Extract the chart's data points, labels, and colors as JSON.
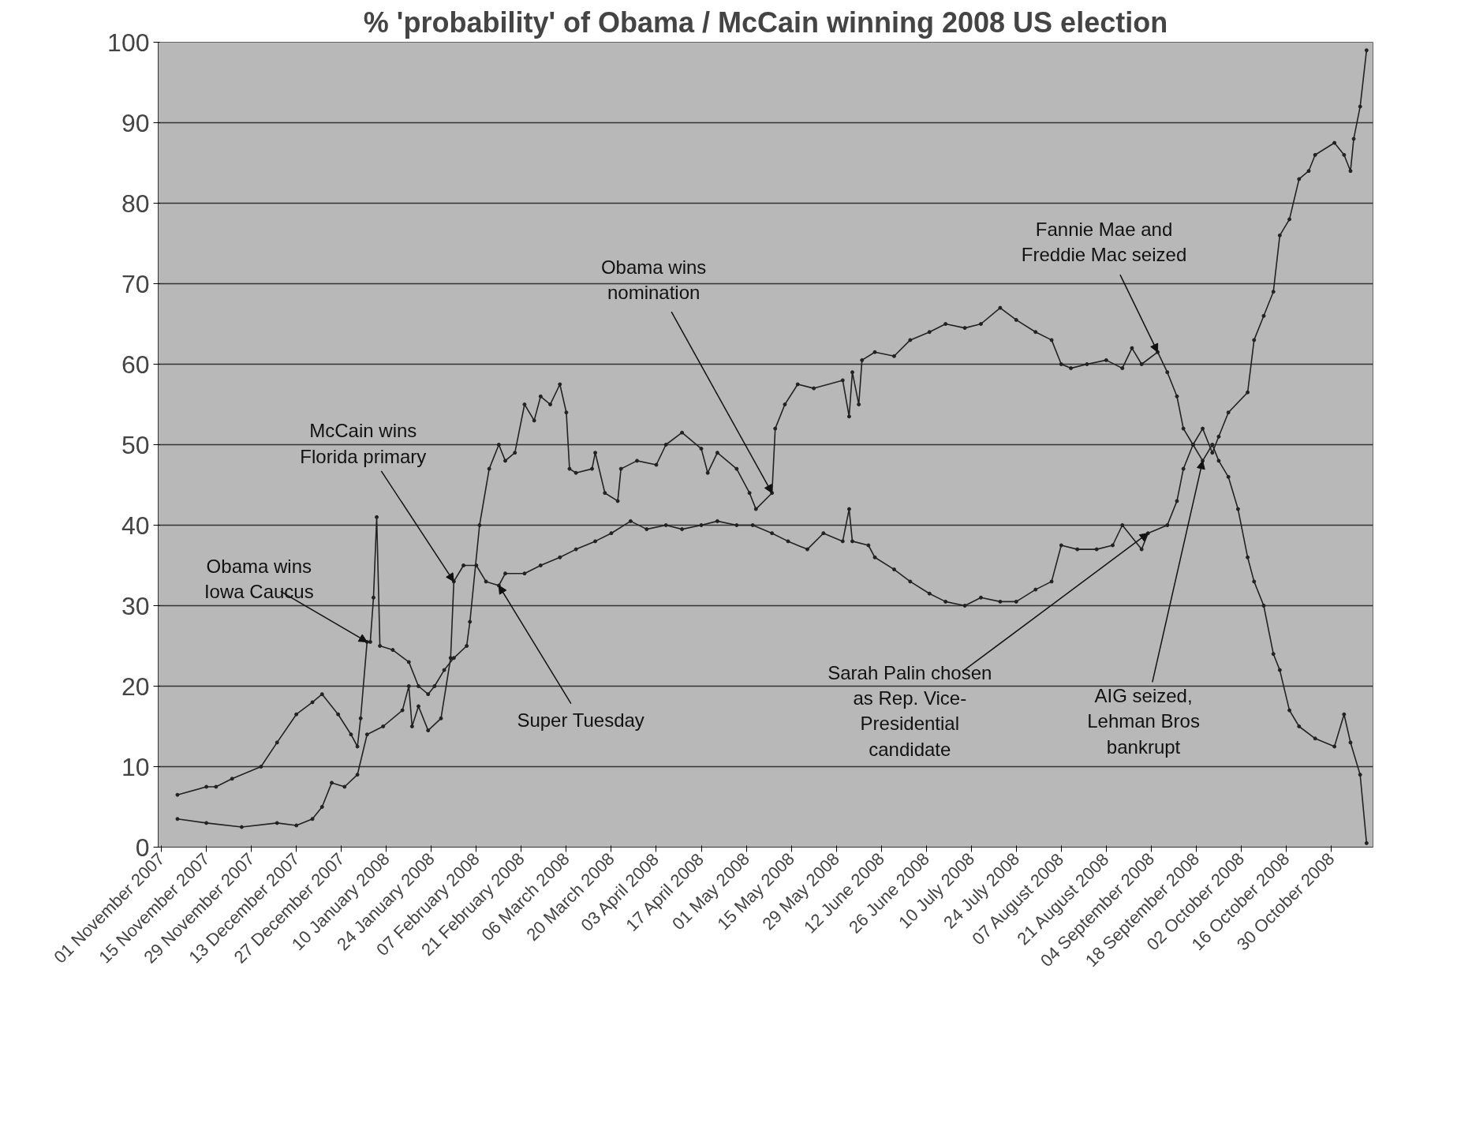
{
  "chart_data": {
    "type": "line",
    "title": "% 'probability' of Obama / McCain winning 2008 US election",
    "xlim": [
      "2007-10-31",
      "2008-11-12"
    ],
    "ylim": [
      0,
      100
    ],
    "yticks": [
      0,
      10,
      20,
      30,
      40,
      50,
      60,
      70,
      80,
      90,
      100
    ],
    "xticks": [
      {
        "value": "2007-11-01",
        "label": "01 November 2007"
      },
      {
        "value": "2007-11-15",
        "label": "15 November 2007"
      },
      {
        "value": "2007-11-29",
        "label": "29 November 2007"
      },
      {
        "value": "2007-12-13",
        "label": "13 December 2007"
      },
      {
        "value": "2007-12-27",
        "label": "27 December 2007"
      },
      {
        "value": "2008-01-10",
        "label": "10 January 2008"
      },
      {
        "value": "2008-01-24",
        "label": "24 January 2008"
      },
      {
        "value": "2008-02-07",
        "label": "07 February 2008"
      },
      {
        "value": "2008-02-21",
        "label": "21 February 2008"
      },
      {
        "value": "2008-03-06",
        "label": "06 March 2008"
      },
      {
        "value": "2008-03-20",
        "label": "20 March 2008"
      },
      {
        "value": "2008-04-03",
        "label": "03 April 2008"
      },
      {
        "value": "2008-04-17",
        "label": "17 April 2008"
      },
      {
        "value": "2008-05-01",
        "label": "01 May 2008"
      },
      {
        "value": "2008-05-15",
        "label": "15 May 2008"
      },
      {
        "value": "2008-05-29",
        "label": "29 May 2008"
      },
      {
        "value": "2008-06-12",
        "label": "12 June 2008"
      },
      {
        "value": "2008-06-26",
        "label": "26 June 2008"
      },
      {
        "value": "2008-07-10",
        "label": "10 July 2008"
      },
      {
        "value": "2008-07-24",
        "label": "24 July 2008"
      },
      {
        "value": "2008-08-07",
        "label": "07 August 2008"
      },
      {
        "value": "2008-08-21",
        "label": "21 August 2008"
      },
      {
        "value": "2008-09-04",
        "label": "04 September 2008"
      },
      {
        "value": "2008-09-18",
        "label": "18 September 2008"
      },
      {
        "value": "2008-10-02",
        "label": "02 October 2008"
      },
      {
        "value": "2008-10-16",
        "label": "16 October 2008"
      },
      {
        "value": "2008-10-30",
        "label": "30 October 2008"
      }
    ],
    "grid": "y",
    "marker": "circle",
    "line_style": "solid",
    "series": [
      {
        "color": "#222222",
        "x": [
          "2007-11-06",
          "2007-11-15",
          "2007-11-18",
          "2007-11-23",
          "2007-12-02",
          "2007-12-07",
          "2007-12-13",
          "2007-12-18",
          "2007-12-21",
          "2007-12-26",
          "2007-12-30",
          "2008-01-01",
          "2008-01-02",
          "2008-01-04",
          "2008-01-05",
          "2008-01-06",
          "2008-01-07",
          "2008-01-08",
          "2008-01-12",
          "2008-01-17",
          "2008-01-20",
          "2008-01-23",
          "2008-01-25",
          "2008-01-28",
          "2008-01-31",
          "2008-02-04",
          "2008-02-05",
          "2008-02-08",
          "2008-02-11",
          "2008-02-14",
          "2008-02-16",
          "2008-02-19",
          "2008-02-22",
          "2008-02-25",
          "2008-02-27",
          "2008-03-01",
          "2008-03-04",
          "2008-03-06",
          "2008-03-07",
          "2008-03-09",
          "2008-03-14",
          "2008-03-15",
          "2008-03-18",
          "2008-03-22",
          "2008-03-23",
          "2008-03-28",
          "2008-04-03",
          "2008-04-06",
          "2008-04-11",
          "2008-04-17",
          "2008-04-19",
          "2008-04-22",
          "2008-04-28",
          "2008-05-02",
          "2008-05-04",
          "2008-05-09",
          "2008-05-10",
          "2008-05-13",
          "2008-05-17",
          "2008-05-22",
          "2008-05-31",
          "2008-06-02",
          "2008-06-03",
          "2008-06-05",
          "2008-06-06",
          "2008-06-10",
          "2008-06-16",
          "2008-06-21",
          "2008-06-27",
          "2008-07-02",
          "2008-07-08",
          "2008-07-13",
          "2008-07-19",
          "2008-07-24",
          "2008-07-30",
          "2008-08-04",
          "2008-08-07",
          "2008-08-10",
          "2008-08-15",
          "2008-08-21",
          "2008-08-26",
          "2008-08-29",
          "2008-09-01",
          "2008-09-06",
          "2008-09-09",
          "2008-09-12",
          "2008-09-14",
          "2008-09-17",
          "2008-09-20",
          "2008-09-23",
          "2008-09-25",
          "2008-09-28",
          "2008-10-04",
          "2008-10-06",
          "2008-10-09",
          "2008-10-12",
          "2008-10-14",
          "2008-10-17",
          "2008-10-20",
          "2008-10-23",
          "2008-10-25",
          "2008-10-31",
          "2008-11-03",
          "2008-11-05",
          "2008-11-06",
          "2008-11-08",
          "2008-11-10"
        ],
        "values": [
          6.5,
          7.5,
          7.5,
          8.5,
          10,
          13,
          16.5,
          18,
          19,
          16.5,
          14,
          12.5,
          16,
          25.5,
          25.5,
          31,
          41,
          25,
          24.5,
          23,
          20,
          19,
          20,
          22,
          23.5,
          25,
          28,
          40,
          47,
          50,
          48,
          49,
          55,
          53,
          56,
          55,
          57.5,
          54,
          47,
          46.5,
          47,
          49,
          44,
          43,
          47,
          48,
          47.5,
          50,
          51.5,
          49.5,
          46.5,
          49,
          47,
          44,
          42,
          44,
          52,
          55,
          57.5,
          57,
          58,
          53.5,
          59,
          55,
          60.5,
          61.5,
          61,
          63,
          64,
          65,
          64.5,
          65,
          67,
          65.5,
          64,
          63,
          60,
          59.5,
          60,
          60.5,
          59.5,
          62,
          60,
          61.5,
          59,
          56,
          52,
          50,
          52,
          49,
          51,
          54,
          56.5,
          63,
          66,
          69,
          76,
          78,
          83,
          84,
          86,
          87.5,
          86,
          84,
          88,
          92,
          99
        ]
      },
      {
        "color": "#222222",
        "x": [
          "2007-11-06",
          "2007-11-15",
          "2007-11-26",
          "2007-12-07",
          "2007-12-13",
          "2007-12-18",
          "2007-12-21",
          "2007-12-24",
          "2007-12-28",
          "2008-01-01",
          "2008-01-04",
          "2008-01-09",
          "2008-01-15",
          "2008-01-17",
          "2008-01-18",
          "2008-01-20",
          "2008-01-23",
          "2008-01-27",
          "2008-01-30",
          "2008-01-31",
          "2008-02-03",
          "2008-02-07",
          "2008-02-10",
          "2008-02-14",
          "2008-02-16",
          "2008-02-22",
          "2008-02-27",
          "2008-03-04",
          "2008-03-09",
          "2008-03-15",
          "2008-03-20",
          "2008-03-26",
          "2008-03-31",
          "2008-04-06",
          "2008-04-11",
          "2008-04-17",
          "2008-04-22",
          "2008-04-28",
          "2008-05-03",
          "2008-05-09",
          "2008-05-14",
          "2008-05-20",
          "2008-05-25",
          "2008-05-31",
          "2008-06-02",
          "2008-06-03",
          "2008-06-08",
          "2008-06-10",
          "2008-06-16",
          "2008-06-21",
          "2008-06-27",
          "2008-07-02",
          "2008-07-08",
          "2008-07-13",
          "2008-07-19",
          "2008-07-24",
          "2008-07-30",
          "2008-08-04",
          "2008-08-07",
          "2008-08-12",
          "2008-08-18",
          "2008-08-23",
          "2008-08-26",
          "2008-09-01",
          "2008-09-03",
          "2008-09-09",
          "2008-09-12",
          "2008-09-14",
          "2008-09-17",
          "2008-09-20",
          "2008-09-23",
          "2008-09-25",
          "2008-09-28",
          "2008-10-01",
          "2008-10-04",
          "2008-10-06",
          "2008-10-09",
          "2008-10-12",
          "2008-10-14",
          "2008-10-17",
          "2008-10-20",
          "2008-10-25",
          "2008-10-31",
          "2008-11-03",
          "2008-11-05",
          "2008-11-08",
          "2008-11-10"
        ],
        "values": [
          3.5,
          3,
          2.5,
          3,
          2.7,
          3.5,
          5,
          8,
          7.5,
          9,
          14,
          15,
          17,
          20,
          15,
          17.5,
          14.5,
          16,
          23.5,
          33,
          35,
          35,
          33,
          32.5,
          34,
          34,
          35,
          36,
          37,
          38,
          39,
          40.5,
          39.5,
          40,
          39.5,
          40,
          40.5,
          40,
          40,
          39,
          38,
          37,
          39,
          38,
          42,
          38,
          37.5,
          36,
          34.5,
          33,
          31.5,
          30.5,
          30,
          31,
          30.5,
          30.5,
          32,
          33,
          37.5,
          37,
          37,
          37.5,
          40,
          37,
          39,
          40,
          43,
          47,
          50,
          48,
          50,
          48,
          46,
          42,
          36,
          33,
          30,
          24,
          22,
          17,
          15,
          13.5,
          12.5,
          16.5,
          13,
          9,
          0.5
        ]
      }
    ],
    "annotations": [
      {
        "text": "Obama wins\nIowa Caucus",
        "x": "2008-01-04",
        "y": 25.5
      },
      {
        "text": "McCain wins\nFlorida primary",
        "x": "2008-01-31",
        "y": 33
      },
      {
        "text": "Super Tuesday",
        "x": "2008-02-14",
        "y": 32.5
      },
      {
        "text": "Obama wins\nnomination",
        "x": "2008-05-09",
        "y": 44
      },
      {
        "text": "Fannie Mae and\nFreddie Mac seized",
        "x": "2008-09-06",
        "y": 61.5
      },
      {
        "text": "Sarah Palin chosen\nas Rep. Vice-\nPresidential\ncandidate",
        "x": "2008-09-03",
        "y": 39
      },
      {
        "text": "AIG seized,\nLehman Bros\nbankrupt",
        "x": "2008-09-20",
        "y": 48
      }
    ]
  }
}
